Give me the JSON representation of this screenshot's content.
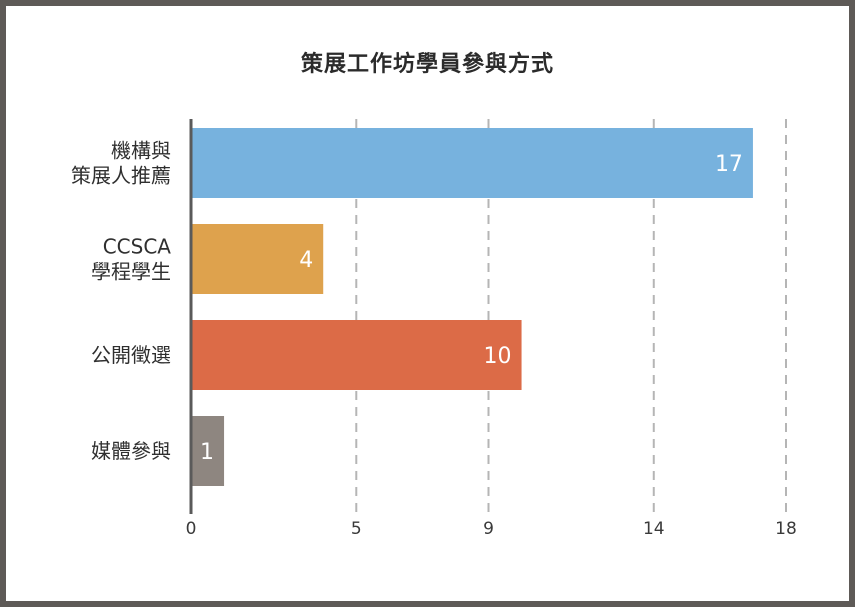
{
  "chart_data": {
    "type": "bar",
    "orientation": "horizontal",
    "title": "策展工作坊學員參與方式",
    "categories": [
      [
        "機構與",
        "策展人推薦"
      ],
      [
        "CCSCA",
        "學程學生"
      ],
      [
        "公開徵選"
      ],
      [
        "媒體參與"
      ]
    ],
    "values": [
      17,
      4,
      10,
      1
    ],
    "bar_colors": [
      "#77b2de",
      "#dea24d",
      "#dc6b47",
      "#8e8680"
    ],
    "xticks": [
      0,
      5,
      9,
      14,
      18
    ],
    "xlim": [
      0,
      18
    ],
    "grid": true,
    "legend": "none"
  }
}
